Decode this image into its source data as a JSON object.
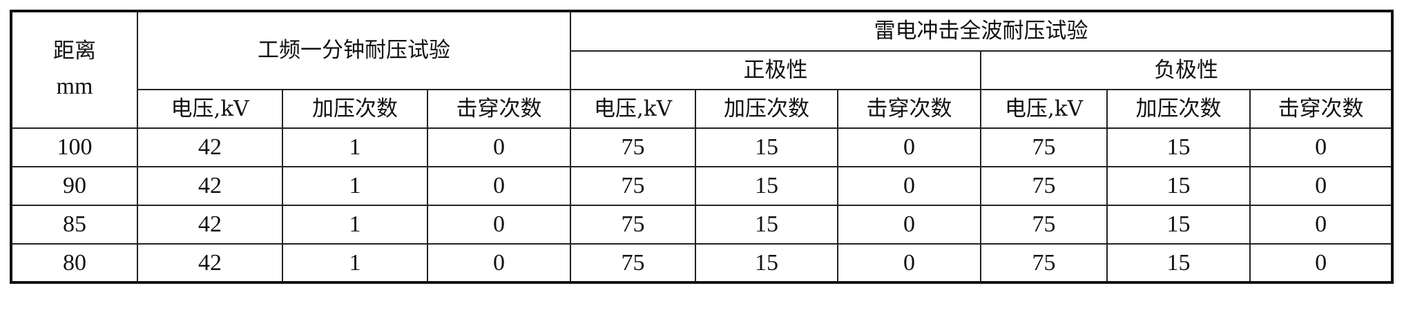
{
  "table": {
    "distance_header": "距离",
    "distance_unit": "mm",
    "power_freq_header": "工频一分钟耐压试验",
    "lightning_header": "雷电冲击全波耐压试验",
    "positive_header": "正极性",
    "negative_header": "负极性",
    "sub_headers": [
      "电压,kV",
      "加压次数",
      "击穿次数",
      "电压,kV",
      "加压次数",
      "击穿次数",
      "电压,kV",
      "加压次数",
      "击穿次数"
    ],
    "rows": [
      [
        "100",
        "42",
        "1",
        "0",
        "75",
        "15",
        "0",
        "75",
        "15",
        "0"
      ],
      [
        "90",
        "42",
        "1",
        "0",
        "75",
        "15",
        "0",
        "75",
        "15",
        "0"
      ],
      [
        "85",
        "42",
        "1",
        "0",
        "75",
        "15",
        "0",
        "75",
        "15",
        "0"
      ],
      [
        "80",
        "42",
        "1",
        "0",
        "75",
        "15",
        "0",
        "75",
        "15",
        "0"
      ]
    ]
  }
}
